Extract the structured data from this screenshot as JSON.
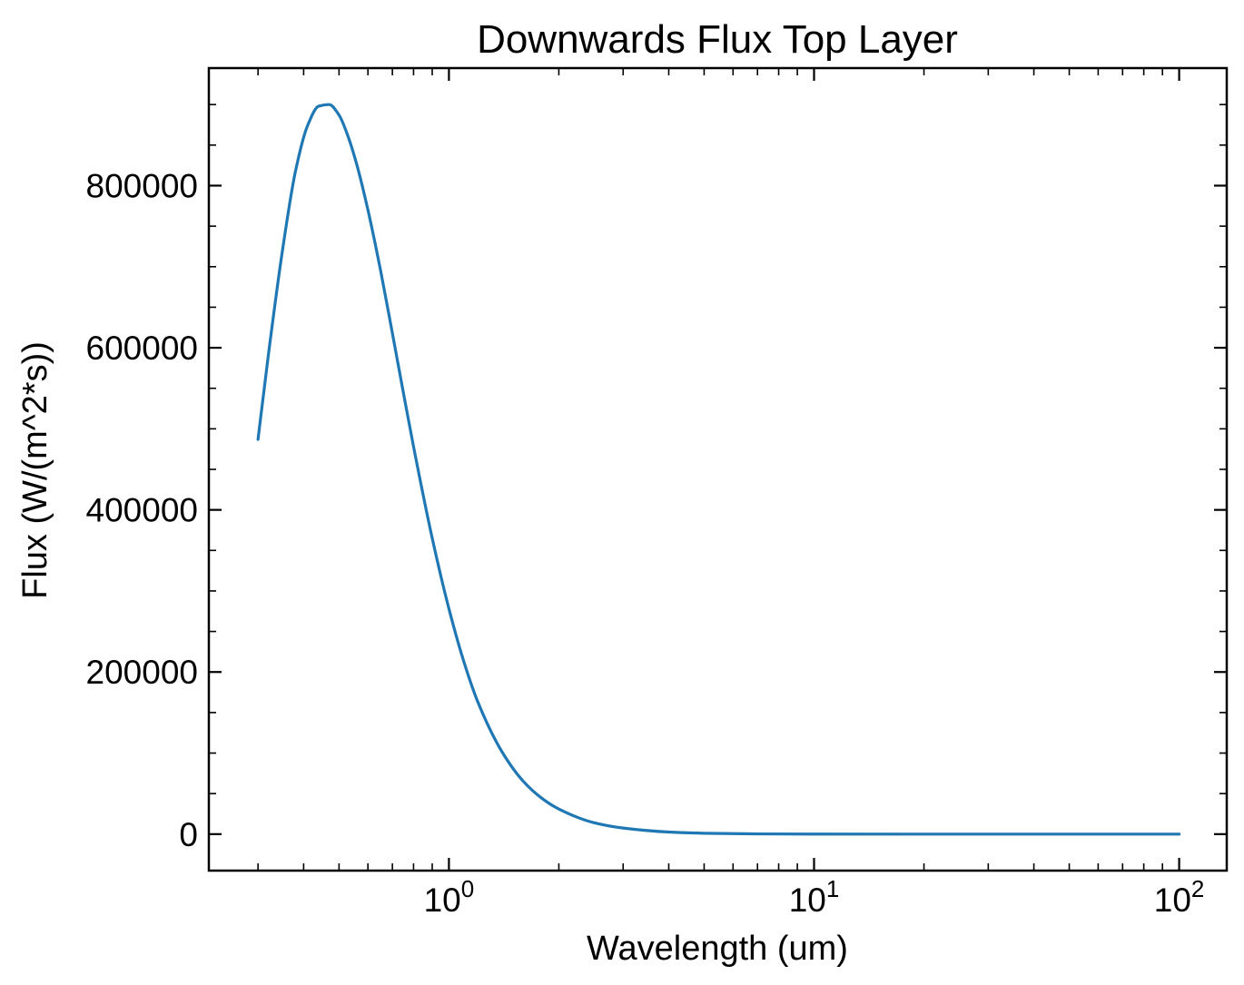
{
  "chart_data": {
    "type": "line",
    "title": "Downwards Flux Top Layer",
    "xlabel": "Wavelength (um)",
    "ylabel": "Flux (W/(m^2*s))",
    "xscale": "log",
    "xlim": [
      0.22,
      135
    ],
    "ylim": [
      -45000,
      945000
    ],
    "grid": false,
    "series_color": "#1f77b4",
    "x_ticks": [
      {
        "base": "10",
        "exp": "0",
        "value": 1
      },
      {
        "base": "10",
        "exp": "1",
        "value": 10
      },
      {
        "base": "10",
        "exp": "2",
        "value": 100
      }
    ],
    "y_ticks": [
      {
        "label": "0",
        "value": 0
      },
      {
        "label": "200000",
        "value": 200000
      },
      {
        "label": "400000",
        "value": 400000
      },
      {
        "label": "600000",
        "value": 600000
      },
      {
        "label": "800000",
        "value": 800000
      }
    ],
    "series": [
      {
        "name": "Downwards Flux",
        "x": [
          0.3,
          0.32,
          0.35,
          0.38,
          0.41,
          0.44,
          0.47,
          0.5,
          0.53,
          0.56,
          0.6,
          0.65,
          0.7,
          0.75,
          0.8,
          0.9,
          1.0,
          1.1,
          1.2,
          1.4,
          1.6,
          1.8,
          2.0,
          2.5,
          3.0,
          4.0,
          5.0,
          7.0,
          10,
          20,
          50,
          100
        ],
        "y": [
          487000,
          590000,
          720000,
          818000,
          874000,
          898000,
          900000,
          887000,
          860000,
          825000,
          770000,
          695000,
          618000,
          545000,
          478000,
          365000,
          278000,
          212000,
          163000,
          101000,
          65000,
          44000,
          31000,
          14000,
          7500,
          2600,
          1100,
          300,
          80,
          6,
          0.3,
          0.02
        ]
      }
    ]
  }
}
